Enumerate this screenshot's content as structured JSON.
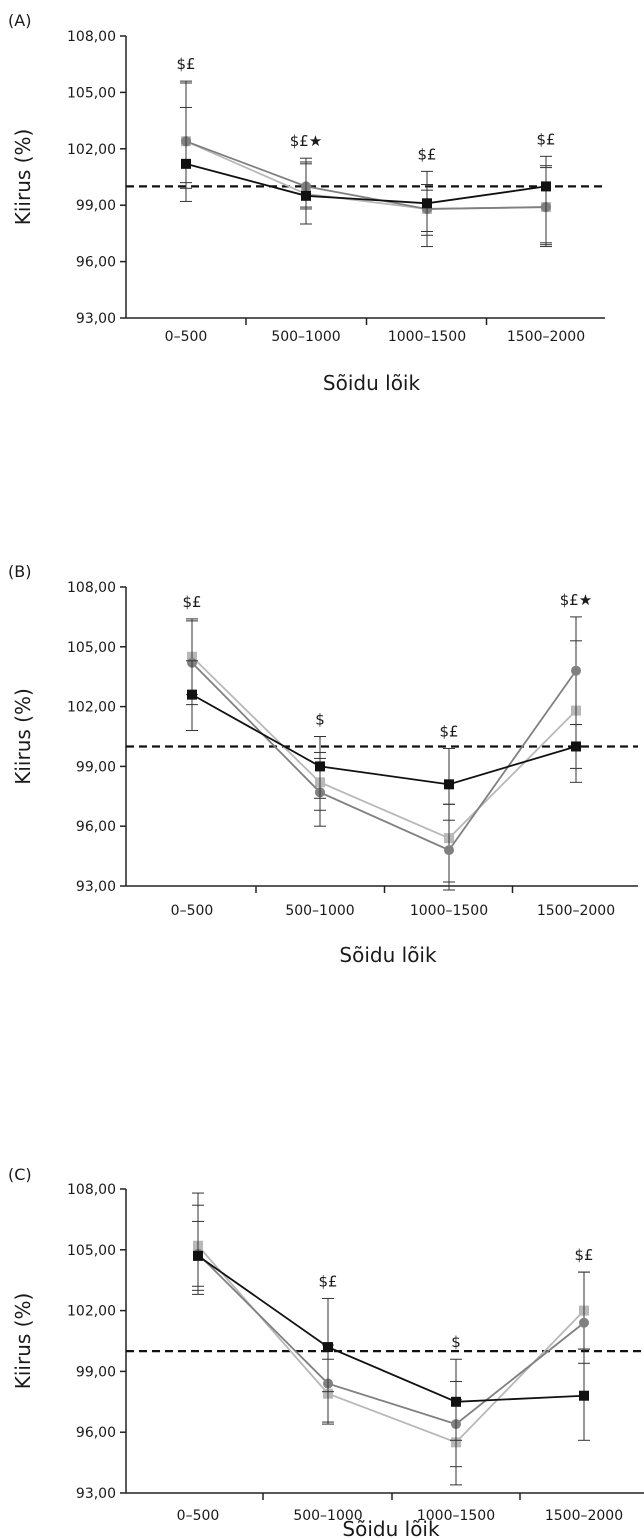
{
  "chart_data": [
    {
      "type": "line",
      "panel_label": "(A)",
      "xlabel": "Sõidu lõik",
      "ylabel": "Kiirus (%)",
      "categories": [
        "0–500",
        "500–1000",
        "1000–1500",
        "1500–2000"
      ],
      "ylim": [
        93,
        108
      ],
      "yticks": [
        "93,00",
        "96,00",
        "99,00",
        "102,00",
        "105,00",
        "108,00"
      ],
      "reference_line": 100,
      "grid": false,
      "series": [
        {
          "marker": "square",
          "color": "#111111",
          "values": [
            101.2,
            99.5,
            99.1,
            100.0
          ],
          "err_upper": [
            104.2,
            101.2,
            100.8,
            101.1
          ],
          "err_lower": [
            99.2,
            98.0,
            97.6,
            96.9
          ]
        },
        {
          "marker": "circle",
          "color": "#808080",
          "values": [
            102.4,
            100.0,
            98.8,
            98.9
          ],
          "err_upper": [
            105.6,
            101.3,
            100.1,
            101.6
          ],
          "err_lower": [
            99.9,
            98.8,
            97.4,
            96.8
          ]
        },
        {
          "marker": "square",
          "color": "#b8b8b8",
          "values": [
            102.4,
            99.6,
            98.8,
            98.9
          ],
          "err_upper": [
            105.5,
            101.5,
            99.8,
            101.0
          ],
          "err_lower": [
            100.2,
            98.9,
            96.8,
            97.0
          ]
        }
      ],
      "annotations": [
        "$£",
        "$£★",
        "$£",
        "$£"
      ]
    },
    {
      "type": "line",
      "panel_label": "(B)",
      "xlabel": "Sõidu lõik",
      "ylabel": "Kiirus (%)",
      "categories": [
        "0–500",
        "500–1000",
        "1000–1500",
        "1500–2000"
      ],
      "ylim": [
        93,
        108
      ],
      "yticks": [
        "93,00",
        "96,00",
        "99,00",
        "102,00",
        "105,00",
        "108,00"
      ],
      "reference_line": 100,
      "grid": false,
      "series": [
        {
          "marker": "square",
          "color": "#111111",
          "values": [
            102.6,
            99.0,
            98.1,
            100.0
          ],
          "err_upper": [
            104.3,
            100.5,
            99.9,
            101.1
          ],
          "err_lower": [
            100.8,
            97.4,
            96.3,
            98.2
          ]
        },
        {
          "marker": "circle",
          "color": "#808080",
          "values": [
            104.2,
            97.7,
            94.8,
            103.8
          ],
          "err_upper": [
            106.3,
            99.4,
            97.1,
            106.5
          ],
          "err_lower": [
            102.1,
            96.0,
            92.8,
            101.1
          ]
        },
        {
          "marker": "square",
          "color": "#b8b8b8",
          "values": [
            104.5,
            98.2,
            95.4,
            101.8
          ],
          "err_upper": [
            106.4,
            99.7,
            97.1,
            105.3
          ],
          "err_lower": [
            102.6,
            96.8,
            93.2,
            98.9
          ]
        }
      ],
      "annotations": [
        "$£",
        "$",
        "$£",
        "$£★"
      ]
    },
    {
      "type": "line",
      "panel_label": "(C)",
      "xlabel": "Sõidu lõik",
      "ylabel": "Kiirus (%)",
      "categories": [
        "0–500",
        "500–1000",
        "1000–1500",
        "1500–2000"
      ],
      "ylim": [
        93,
        108
      ],
      "yticks": [
        "93,00",
        "96,00",
        "99,00",
        "102,00",
        "105,00",
        "108,00"
      ],
      "reference_line": 100,
      "grid": false,
      "series": [
        {
          "marker": "square",
          "color": "#111111",
          "values": [
            104.7,
            100.2,
            97.5,
            97.8
          ],
          "err_upper": [
            106.4,
            102.6,
            99.6,
            100.1
          ],
          "err_lower": [
            103.0,
            98.0,
            95.6,
            95.6
          ]
        },
        {
          "marker": "circle",
          "color": "#808080",
          "values": [
            104.8,
            98.4,
            96.4,
            101.4
          ],
          "err_upper": [
            107.8,
            100.3,
            98.5,
            103.9
          ],
          "err_lower": [
            102.8,
            96.5,
            94.3,
            99.4
          ]
        },
        {
          "marker": "square",
          "color": "#b8b8b8",
          "values": [
            105.2,
            97.9,
            95.5,
            102.0
          ],
          "err_upper": [
            107.2,
            99.6,
            97.6,
            103.9
          ],
          "err_lower": [
            103.2,
            96.4,
            93.4,
            100.1
          ]
        }
      ],
      "annotations": [
        "",
        "$£",
        "$",
        "$£"
      ]
    }
  ]
}
